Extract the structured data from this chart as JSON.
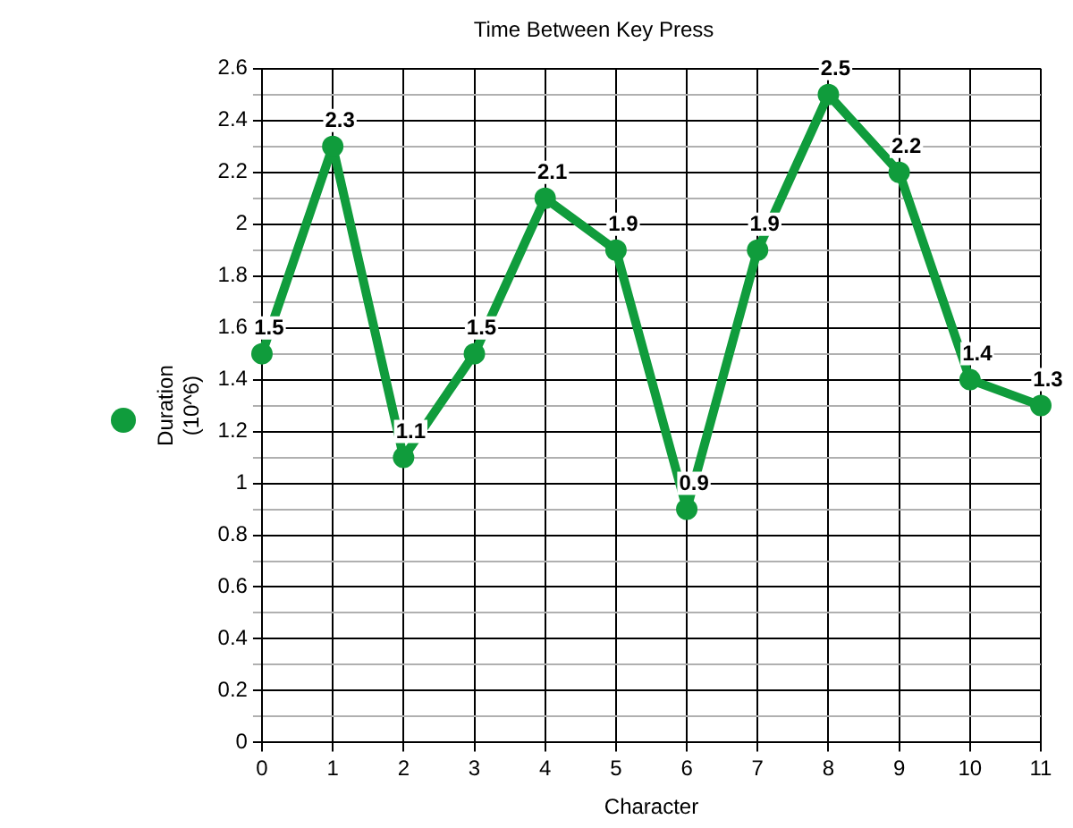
{
  "chart_data": {
    "type": "line",
    "title": "Time Between Key Press",
    "xlabel": "Character",
    "ylabel": "Duration\n(10^6)",
    "categories": [
      "0",
      "1",
      "2",
      "3",
      "4",
      "5",
      "6",
      "7",
      "8",
      "9",
      "10",
      "11"
    ],
    "series": [
      {
        "color": "#109c3c",
        "values": [
          1.5,
          2.3,
          1.1,
          1.5,
          2.1,
          1.9,
          0.9,
          1.9,
          2.5,
          2.2,
          1.4,
          1.3
        ]
      }
    ],
    "ylim": [
      0,
      2.6
    ],
    "yticks": [
      0,
      {
        "value": 0.1,
        "label": null
      },
      0.2,
      {
        "value": 0.3,
        "label": null
      },
      0.4,
      {
        "value": 0.5,
        "label": null
      },
      0.6,
      {
        "value": 0.7,
        "label": null
      },
      0.8,
      {
        "value": 0.9,
        "label": null
      },
      1,
      {
        "value": 1.1,
        "label": null
      },
      1.2,
      {
        "value": 1.3,
        "label": null
      },
      1.4,
      {
        "value": 1.5,
        "label": null
      },
      1.6,
      {
        "value": 1.7,
        "label": null
      },
      1.8,
      {
        "value": 1.9,
        "label": null
      },
      2,
      {
        "value": 2.1,
        "label": null
      },
      2.2,
      {
        "value": 2.3,
        "label": null
      },
      2.4,
      {
        "value": 2.5,
        "label": null
      },
      2.6
    ],
    "grid": true,
    "marker": "circle",
    "line_style": "solid",
    "data_labels": true
  }
}
